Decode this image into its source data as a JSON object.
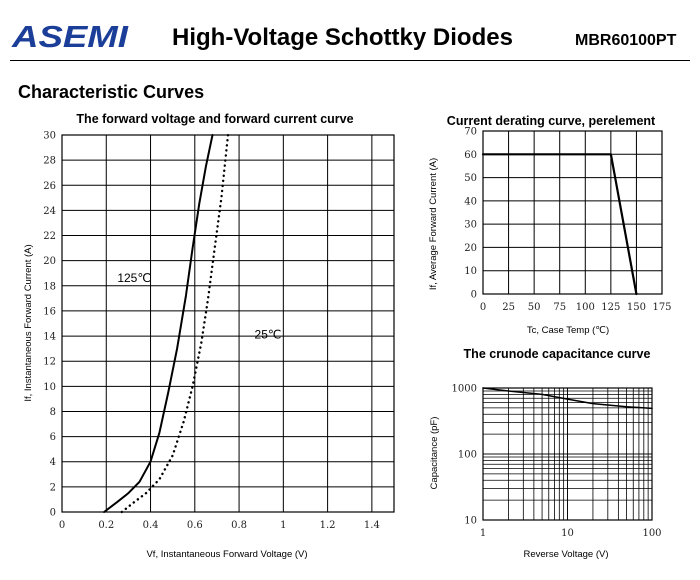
{
  "header": {
    "brand": "ASEMI",
    "title": "High-Voltage Schottky Diodes",
    "part_number": "MBR60100PT"
  },
  "section": {
    "title": "Characteristic Curves"
  },
  "colors": {
    "logo": "#1b3e98",
    "ink": "#000000"
  },
  "chart_data": [
    {
      "type": "line",
      "title": "The forward voltage and forward current curve",
      "xlabel": "Vf, Instantaneous Forward Voltage (V)",
      "ylabel": "If, Instantaneous Forward Current (A)",
      "xlim": [
        0,
        1.5
      ],
      "ylim": [
        0,
        30
      ],
      "x_ticks": [
        "0",
        "0.2",
        "0.4",
        "0.6",
        "0.8",
        "1",
        "1.2",
        "1.4"
      ],
      "y_ticks": [
        "0",
        "2",
        "4",
        "6",
        "8",
        "10",
        "12",
        "14",
        "16",
        "18",
        "20",
        "22",
        "24",
        "26",
        "28",
        "30"
      ],
      "grid": true,
      "annotations": [
        {
          "text": "125℃",
          "x": 0.25,
          "y": 18.3
        },
        {
          "text": "25℃",
          "x": 0.87,
          "y": 13.8
        }
      ],
      "series": [
        {
          "style": "solid",
          "x": [
            0.19,
            0.25,
            0.3,
            0.35,
            0.4,
            0.44,
            0.48,
            0.52,
            0.56,
            0.59,
            0.62,
            0.65,
            0.68
          ],
          "y": [
            0,
            0.8,
            1.5,
            2.4,
            4,
            6.3,
            9.5,
            13,
            17.2,
            21,
            24.5,
            27.5,
            30
          ]
        },
        {
          "style": "dotted",
          "x": [
            0.27,
            0.32,
            0.38,
            0.44,
            0.5,
            0.55,
            0.59,
            0.63,
            0.66,
            0.69,
            0.72,
            0.75
          ],
          "y": [
            0,
            0.7,
            1.5,
            2.6,
            4.5,
            7.2,
            10,
            13.5,
            17,
            21,
            25,
            30
          ]
        }
      ]
    },
    {
      "type": "line",
      "title": "Current derating curve, perelement",
      "xlabel": "Tc, Case Temp (℃)",
      "ylabel": "If, Average Forward Current (A)",
      "xlim": [
        0,
        175
      ],
      "ylim": [
        0,
        70
      ],
      "x_ticks": [
        "0",
        "25",
        "50",
        "75",
        "100",
        "125",
        "150",
        "175"
      ],
      "y_ticks": [
        "0",
        "10",
        "20",
        "30",
        "40",
        "50",
        "60",
        "70"
      ],
      "grid": true,
      "series": [
        {
          "style": "solid",
          "x": [
            0,
            125,
            150
          ],
          "y": [
            60,
            60,
            0
          ]
        }
      ]
    },
    {
      "type": "line",
      "title": "The crunode capacitance curve",
      "xlabel": "Reverse Voltage (V)",
      "ylabel": "Capacitance (pF)",
      "xscale": "log",
      "yscale": "log",
      "xlim": [
        1,
        100
      ],
      "ylim": [
        10,
        1000
      ],
      "x_ticks": [
        "1",
        "10",
        "100"
      ],
      "y_ticks": [
        "10",
        "100",
        "1000"
      ],
      "grid": true,
      "series": [
        {
          "style": "solid",
          "x": [
            1,
            2,
            5,
            10,
            20,
            50,
            100
          ],
          "y": [
            1000,
            900,
            800,
            680,
            580,
            520,
            490
          ]
        }
      ]
    }
  ]
}
